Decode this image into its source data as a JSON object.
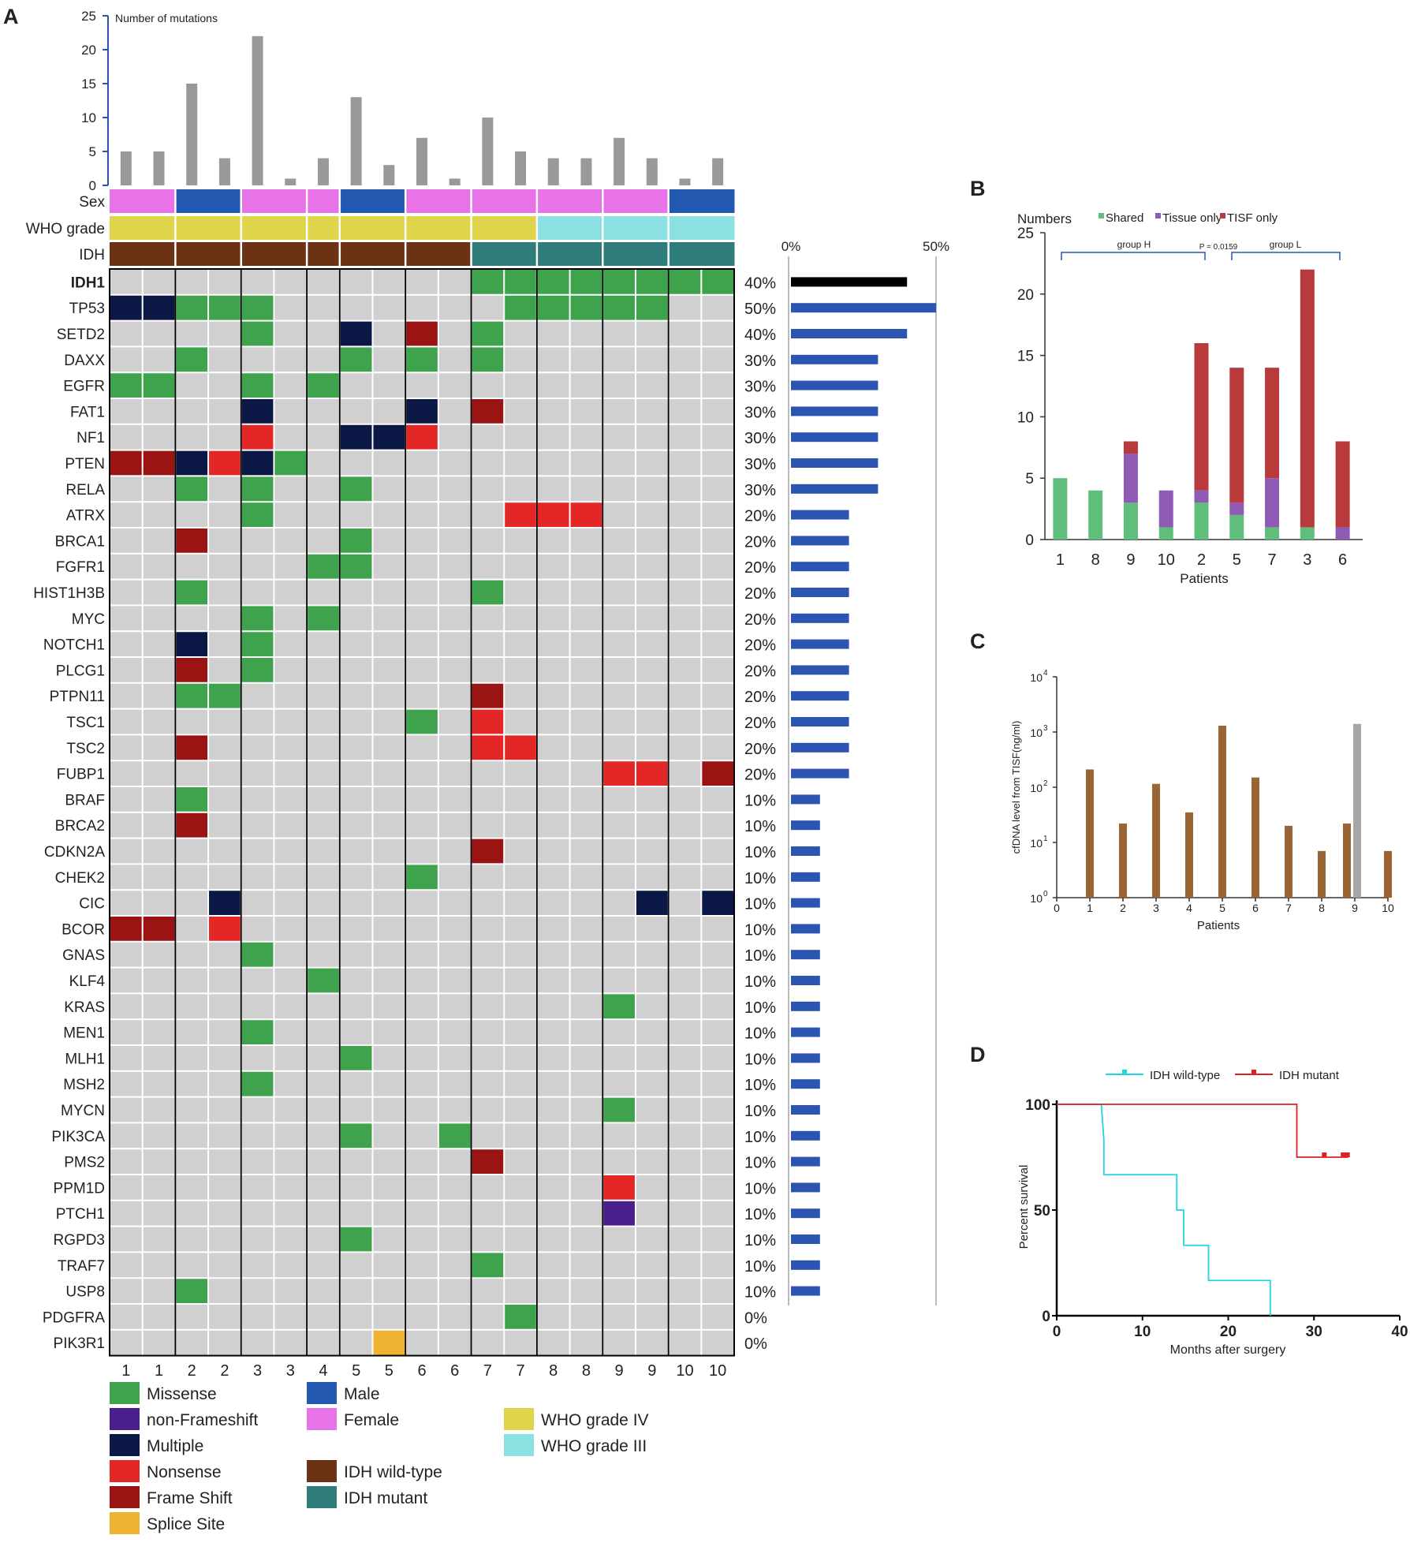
{
  "panels": {
    "a": "A",
    "b": "B",
    "c": "C",
    "d": "D"
  },
  "colors": {
    "missense": "#3fa34d",
    "non_frameshift": "#4b1f8c",
    "multiple": "#0b1745",
    "nonsense": "#e32626",
    "frame_shift": "#9b1414",
    "splice_site": "#f0b232",
    "male": "#2358b0",
    "female": "#e873e8",
    "grade_iv": "#e0d44b",
    "grade_iii": "#8be0e2",
    "idh_wt": "#6b3313",
    "idh_mut": "#2f7d7a",
    "empty": "#d0d0d0",
    "bar_gray": "#999999",
    "freq_blue": "#2b55b0",
    "freq_black": "#000000",
    "shared": "#5fbf7a",
    "tissue_only": "#8e5ab4",
    "tisf_only": "#b83a3a",
    "cfdna_brown": "#9a6434",
    "cfdna_gray": "#a6a6a6",
    "wt_line": "#22d3e0",
    "mut_line": "#e02020"
  },
  "chart_data": [
    {
      "type": "heatmap",
      "panel": "A",
      "top_bar": {
        "type": "bar",
        "ylabel": "Number of mutations",
        "ylim": [
          0,
          25
        ],
        "yticks": [
          "0",
          "5",
          "10",
          "15",
          "20",
          "25"
        ],
        "values": [
          5,
          5,
          15,
          4,
          22,
          1,
          4,
          13,
          3,
          7,
          1,
          10,
          5,
          4,
          4,
          7,
          4,
          1,
          4
        ]
      },
      "samples": [
        "1",
        "1",
        "2",
        "2",
        "3",
        "3",
        "4",
        "5",
        "5",
        "6",
        "6",
        "7",
        "7",
        "8",
        "8",
        "9",
        "9",
        "10",
        "10"
      ],
      "annotation_labels": {
        "sex": "Sex",
        "grade": "WHO grade",
        "idh": "IDH"
      },
      "sex": [
        "F",
        "F",
        "M",
        "M",
        "F",
        "F",
        "F",
        "M",
        "M",
        "F",
        "F",
        "F",
        "F",
        "F",
        "F",
        "F",
        "F",
        "M",
        "M"
      ],
      "grade": [
        "IV",
        "IV",
        "IV",
        "IV",
        "IV",
        "IV",
        "IV",
        "IV",
        "IV",
        "IV",
        "IV",
        "IV",
        "IV",
        "III",
        "III",
        "III",
        "III",
        "III",
        "III"
      ],
      "idh": [
        "WT",
        "WT",
        "WT",
        "WT",
        "WT",
        "WT",
        "WT",
        "WT",
        "WT",
        "WT",
        "WT",
        "MUT",
        "MUT",
        "MUT",
        "MUT",
        "MUT",
        "MUT",
        "MUT",
        "MUT"
      ],
      "genes": [
        "IDH1",
        "TP53",
        "SETD2",
        "DAXX",
        "EGFR",
        "FAT1",
        "NF1",
        "PTEN",
        "RELA",
        "ATRX",
        "BRCA1",
        "FGFR1",
        "HIST1H3B",
        "MYC",
        "NOTCH1",
        "PLCG1",
        "PTPN11",
        "TSC1",
        "TSC2",
        "FUBP1",
        "BRAF",
        "BRCA2",
        "CDKN2A",
        "CHEK2",
        "CIC",
        "BCOR",
        "GNAS",
        "KLF4",
        "KRAS",
        "MEN1",
        "MLH1",
        "MSH2",
        "MYCN",
        "PIK3CA",
        "PMS2",
        "PPM1D",
        "PTCH1",
        "RGPD3",
        "TRAF7",
        "USP8",
        "PDGFRA",
        "PIK3R1"
      ],
      "frequency_labels": [
        "40%",
        "50%",
        "40%",
        "30%",
        "30%",
        "30%",
        "30%",
        "30%",
        "30%",
        "20%",
        "20%",
        "20%",
        "20%",
        "20%",
        "20%",
        "20%",
        "20%",
        "20%",
        "20%",
        "20%",
        "10%",
        "10%",
        "10%",
        "10%",
        "10%",
        "10%",
        "10%",
        "10%",
        "10%",
        "10%",
        "10%",
        "10%",
        "10%",
        "10%",
        "10%",
        "10%",
        "10%",
        "10%",
        "10%",
        "10%",
        "0%",
        "0%"
      ],
      "frequency_values": [
        40,
        50,
        40,
        30,
        30,
        30,
        30,
        30,
        30,
        20,
        20,
        20,
        20,
        20,
        20,
        20,
        20,
        20,
        20,
        20,
        10,
        10,
        10,
        10,
        10,
        10,
        10,
        10,
        10,
        10,
        10,
        10,
        10,
        10,
        10,
        10,
        10,
        10,
        10,
        10,
        0,
        0
      ],
      "frequency_axis": {
        "min_label": "0%",
        "max_label": "50%",
        "max": 50
      },
      "mutations": [
        {
          "gene": 0,
          "col": 11,
          "type": "missense"
        },
        {
          "gene": 0,
          "col": 12,
          "type": "missense"
        },
        {
          "gene": 0,
          "col": 13,
          "type": "missense"
        },
        {
          "gene": 0,
          "col": 14,
          "type": "missense"
        },
        {
          "gene": 0,
          "col": 15,
          "type": "missense"
        },
        {
          "gene": 0,
          "col": 16,
          "type": "missense"
        },
        {
          "gene": 0,
          "col": 17,
          "type": "missense"
        },
        {
          "gene": 0,
          "col": 18,
          "type": "missense"
        },
        {
          "gene": 1,
          "col": 0,
          "type": "multiple"
        },
        {
          "gene": 1,
          "col": 1,
          "type": "multiple"
        },
        {
          "gene": 1,
          "col": 2,
          "type": "missense"
        },
        {
          "gene": 1,
          "col": 3,
          "type": "missense"
        },
        {
          "gene": 1,
          "col": 4,
          "type": "missense"
        },
        {
          "gene": 1,
          "col": 12,
          "type": "missense"
        },
        {
          "gene": 1,
          "col": 13,
          "type": "missense"
        },
        {
          "gene": 1,
          "col": 14,
          "type": "missense"
        },
        {
          "gene": 1,
          "col": 15,
          "type": "missense"
        },
        {
          "gene": 1,
          "col": 16,
          "type": "missense"
        },
        {
          "gene": 2,
          "col": 4,
          "type": "missense"
        },
        {
          "gene": 2,
          "col": 7,
          "type": "multiple"
        },
        {
          "gene": 2,
          "col": 9,
          "type": "frame_shift"
        },
        {
          "gene": 2,
          "col": 11,
          "type": "missense"
        },
        {
          "gene": 3,
          "col": 2,
          "type": "missense"
        },
        {
          "gene": 3,
          "col": 7,
          "type": "missense"
        },
        {
          "gene": 3,
          "col": 9,
          "type": "missense"
        },
        {
          "gene": 3,
          "col": 11,
          "type": "missense"
        },
        {
          "gene": 4,
          "col": 0,
          "type": "missense"
        },
        {
          "gene": 4,
          "col": 1,
          "type": "missense"
        },
        {
          "gene": 4,
          "col": 4,
          "type": "missense"
        },
        {
          "gene": 4,
          "col": 6,
          "type": "missense"
        },
        {
          "gene": 5,
          "col": 4,
          "type": "multiple"
        },
        {
          "gene": 5,
          "col": 9,
          "type": "multiple"
        },
        {
          "gene": 5,
          "col": 11,
          "type": "frame_shift"
        },
        {
          "gene": 6,
          "col": 4,
          "type": "nonsense"
        },
        {
          "gene": 6,
          "col": 7,
          "type": "multiple"
        },
        {
          "gene": 6,
          "col": 8,
          "type": "multiple"
        },
        {
          "gene": 6,
          "col": 9,
          "type": "nonsense"
        },
        {
          "gene": 7,
          "col": 0,
          "type": "frame_shift"
        },
        {
          "gene": 7,
          "col": 1,
          "type": "frame_shift"
        },
        {
          "gene": 7,
          "col": 2,
          "type": "multiple"
        },
        {
          "gene": 7,
          "col": 3,
          "type": "nonsense"
        },
        {
          "gene": 7,
          "col": 4,
          "type": "multiple"
        },
        {
          "gene": 7,
          "col": 5,
          "type": "missense"
        },
        {
          "gene": 8,
          "col": 2,
          "type": "missense"
        },
        {
          "gene": 8,
          "col": 4,
          "type": "missense"
        },
        {
          "gene": 8,
          "col": 7,
          "type": "missense"
        },
        {
          "gene": 9,
          "col": 4,
          "type": "missense"
        },
        {
          "gene": 9,
          "col": 12,
          "type": "nonsense"
        },
        {
          "gene": 9,
          "col": 13,
          "type": "nonsense"
        },
        {
          "gene": 9,
          "col": 14,
          "type": "nonsense"
        },
        {
          "gene": 10,
          "col": 2,
          "type": "frame_shift"
        },
        {
          "gene": 10,
          "col": 7,
          "type": "missense"
        },
        {
          "gene": 11,
          "col": 6,
          "type": "missense"
        },
        {
          "gene": 11,
          "col": 7,
          "type": "missense"
        },
        {
          "gene": 12,
          "col": 2,
          "type": "missense"
        },
        {
          "gene": 12,
          "col": 11,
          "type": "missense"
        },
        {
          "gene": 13,
          "col": 4,
          "type": "missense"
        },
        {
          "gene": 13,
          "col": 6,
          "type": "missense"
        },
        {
          "gene": 14,
          "col": 2,
          "type": "multiple"
        },
        {
          "gene": 14,
          "col": 4,
          "type": "missense"
        },
        {
          "gene": 15,
          "col": 2,
          "type": "frame_shift"
        },
        {
          "gene": 15,
          "col": 4,
          "type": "missense"
        },
        {
          "gene": 16,
          "col": 2,
          "type": "missense"
        },
        {
          "gene": 16,
          "col": 3,
          "type": "missense"
        },
        {
          "gene": 16,
          "col": 11,
          "type": "frame_shift"
        },
        {
          "gene": 17,
          "col": 9,
          "type": "missense"
        },
        {
          "gene": 17,
          "col": 11,
          "type": "nonsense"
        },
        {
          "gene": 18,
          "col": 2,
          "type": "frame_shift"
        },
        {
          "gene": 18,
          "col": 11,
          "type": "nonsense"
        },
        {
          "gene": 18,
          "col": 12,
          "type": "nonsense"
        },
        {
          "gene": 19,
          "col": 15,
          "type": "nonsense"
        },
        {
          "gene": 19,
          "col": 16,
          "type": "nonsense"
        },
        {
          "gene": 19,
          "col": 18,
          "type": "frame_shift"
        },
        {
          "gene": 20,
          "col": 2,
          "type": "missense"
        },
        {
          "gene": 21,
          "col": 2,
          "type": "frame_shift"
        },
        {
          "gene": 22,
          "col": 11,
          "type": "frame_shift"
        },
        {
          "gene": 23,
          "col": 9,
          "type": "missense"
        },
        {
          "gene": 24,
          "col": 3,
          "type": "multiple"
        },
        {
          "gene": 24,
          "col": 16,
          "type": "multiple"
        },
        {
          "gene": 24,
          "col": 18,
          "type": "multiple"
        },
        {
          "gene": 25,
          "col": 0,
          "type": "frame_shift"
        },
        {
          "gene": 25,
          "col": 1,
          "type": "frame_shift"
        },
        {
          "gene": 25,
          "col": 3,
          "type": "nonsense"
        },
        {
          "gene": 26,
          "col": 4,
          "type": "missense"
        },
        {
          "gene": 27,
          "col": 6,
          "type": "missense"
        },
        {
          "gene": 28,
          "col": 15,
          "type": "missense"
        },
        {
          "gene": 29,
          "col": 4,
          "type": "missense"
        },
        {
          "gene": 30,
          "col": 7,
          "type": "missense"
        },
        {
          "gene": 31,
          "col": 4,
          "type": "missense"
        },
        {
          "gene": 32,
          "col": 15,
          "type": "missense"
        },
        {
          "gene": 33,
          "col": 7,
          "type": "missense"
        },
        {
          "gene": 33,
          "col": 10,
          "type": "missense"
        },
        {
          "gene": 34,
          "col": 11,
          "type": "frame_shift"
        },
        {
          "gene": 35,
          "col": 15,
          "type": "nonsense"
        },
        {
          "gene": 36,
          "col": 15,
          "type": "non_frameshift"
        },
        {
          "gene": 37,
          "col": 7,
          "type": "missense"
        },
        {
          "gene": 38,
          "col": 11,
          "type": "missense"
        },
        {
          "gene": 39,
          "col": 2,
          "type": "missense"
        },
        {
          "gene": 40,
          "col": 12,
          "type": "missense"
        },
        {
          "gene": 41,
          "col": 8,
          "type": "splice_site"
        }
      ],
      "legend": [
        {
          "key": "missense",
          "label": "Missense"
        },
        {
          "key": "non_frameshift",
          "label": "non-Frameshift"
        },
        {
          "key": "multiple",
          "label": "Multiple"
        },
        {
          "key": "nonsense",
          "label": "Nonsense"
        },
        {
          "key": "frame_shift",
          "label": "Frame Shift"
        },
        {
          "key": "splice_site",
          "label": "Splice Site"
        },
        {
          "key": "male",
          "label": "Male"
        },
        {
          "key": "female",
          "label": "Female"
        },
        {
          "key": "idh_wt",
          "label": "IDH wild-type"
        },
        {
          "key": "idh_mut",
          "label": "IDH mutant"
        },
        {
          "key": "grade_iv",
          "label": "WHO grade IV"
        },
        {
          "key": "grade_iii",
          "label": "WHO grade III"
        }
      ]
    },
    {
      "type": "bar",
      "panel": "B",
      "stacked": true,
      "title": "Numbers",
      "xlabel": "Patients",
      "categories": [
        "1",
        "8",
        "9",
        "10",
        "2",
        "5",
        "7",
        "3",
        "6"
      ],
      "ylim": [
        0,
        25
      ],
      "yticks": [
        "0",
        "5",
        "10",
        "15",
        "20",
        "25"
      ],
      "series": [
        {
          "name": "Shared",
          "values": [
            5,
            4,
            3,
            1,
            3,
            2,
            1,
            1,
            0
          ]
        },
        {
          "name": "Tissue only",
          "values": [
            0,
            0,
            4,
            3,
            1,
            1,
            4,
            0,
            1
          ]
        },
        {
          "name": "TISF only",
          "values": [
            0,
            0,
            1,
            0,
            12,
            11,
            9,
            21,
            7
          ]
        }
      ],
      "annotations": {
        "group_h": "group H",
        "group_l": "group L",
        "p_value": "P = 0.0159"
      }
    },
    {
      "type": "bar",
      "panel": "C",
      "ylabel": "cfDNA level from TISF(ng/ml)",
      "xlabel": "Patients",
      "yscale": "log",
      "ylim": [
        1,
        10000
      ],
      "ytick_base": "10",
      "ytick_exponents": [
        "0",
        "1",
        "2",
        "3",
        "4"
      ],
      "xticks": [
        "0",
        "1",
        "2",
        "3",
        "4",
        "5",
        "6",
        "7",
        "8",
        "9",
        "10"
      ],
      "xlim": [
        0,
        10
      ],
      "bars": [
        {
          "x": 1,
          "value": 210,
          "color": "brown"
        },
        {
          "x": 2,
          "value": 22,
          "color": "brown"
        },
        {
          "x": 3,
          "value": 115,
          "color": "brown"
        },
        {
          "x": 4,
          "value": 35,
          "color": "brown"
        },
        {
          "x": 5,
          "value": 1300,
          "color": "brown"
        },
        {
          "x": 6,
          "value": 150,
          "color": "brown"
        },
        {
          "x": 7,
          "value": 20,
          "color": "brown"
        },
        {
          "x": 8,
          "value": 7,
          "color": "brown"
        },
        {
          "x": 9,
          "value": 22,
          "color": "brown"
        },
        {
          "x": 9,
          "value": 1400,
          "color": "gray"
        },
        {
          "x": 10,
          "value": 7,
          "color": "brown"
        }
      ]
    },
    {
      "type": "line",
      "panel": "D",
      "xlabel": "Months after surgery",
      "ylabel": "Percent survival",
      "xlim": [
        0,
        40
      ],
      "ylim": [
        0,
        100
      ],
      "xticks": [
        "0",
        "10",
        "20",
        "30",
        "40"
      ],
      "yticks": [
        "0",
        "50",
        "100"
      ],
      "series": [
        {
          "name": "IDH wild-type",
          "x": [
            0,
            5.2,
            5.5,
            5.5,
            14,
            14,
            14.8,
            14.8,
            17.7,
            17.7,
            24.9,
            24.9
          ],
          "y": [
            100,
            100,
            83,
            66.7,
            66.7,
            50,
            50,
            33.3,
            33.3,
            16.7,
            16.7,
            0
          ],
          "censored": []
        },
        {
          "name": "IDH mutant",
          "x": [
            0,
            28,
            28,
            34
          ],
          "y": [
            100,
            100,
            75,
            75
          ],
          "censored": [
            [
              31.2,
              75
            ],
            [
              33.4,
              75
            ],
            [
              33.9,
              75
            ]
          ]
        }
      ]
    }
  ]
}
